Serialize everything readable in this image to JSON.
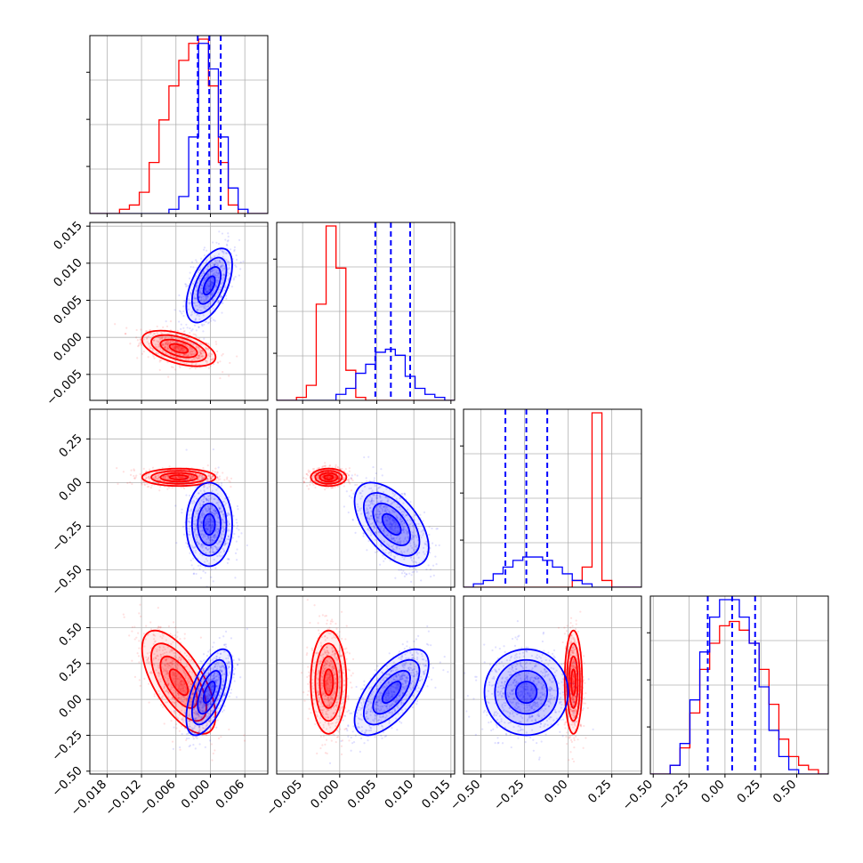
{
  "figure": {
    "type": "corner-plot",
    "colors": {
      "red": "#ff0000",
      "blue": "#0000ff",
      "grid": "#b0b0b0",
      "axis": "#000000"
    },
    "grid": true,
    "n_params": 4
  },
  "chart_data": {
    "type": "scatter",
    "title": "",
    "params": [
      {
        "range": [
          -0.021,
          0.01
        ],
        "ticks": [
          -0.018,
          -0.012,
          -0.006,
          0.0,
          0.006
        ],
        "tick_labels": [
          "−0.018",
          "−0.012",
          "−0.006",
          "0.000",
          "0.006"
        ]
      },
      {
        "range": [
          -0.0085,
          0.0155
        ],
        "ticks": [
          -0.005,
          0.0,
          0.005,
          0.01,
          0.015
        ],
        "tick_labels": [
          "−0.005",
          "0.000",
          "0.005",
          "0.010",
          "0.015"
        ]
      },
      {
        "range": [
          -0.6,
          0.42
        ],
        "ticks": [
          -0.5,
          -0.25,
          0.0,
          0.25
        ],
        "tick_labels": [
          "−0.50",
          "−0.25",
          "0.00",
          "0.25"
        ]
      },
      {
        "range": [
          -0.52,
          0.72
        ],
        "ticks": [
          -0.5,
          -0.25,
          0.0,
          0.25,
          0.5
        ],
        "tick_labels": [
          "−0.50",
          "−0.25",
          "0.00",
          "0.25",
          "0.50"
        ]
      }
    ],
    "series": [
      {
        "color": "#ff0000",
        "mean": [
          -0.0055,
          -0.0015,
          0.03,
          0.12
        ],
        "sd": [
          0.0032,
          0.0012,
          0.025,
          0.18
        ],
        "corr": [
          [
            0,
            1,
            -0.5
          ],
          [
            0,
            3,
            -0.65
          ]
        ]
      },
      {
        "color": "#0000ff",
        "mean": [
          -0.0002,
          0.007,
          -0.24,
          0.05
        ],
        "sd": [
          0.002,
          0.0025,
          0.12,
          0.15
        ],
        "corr": [
          [
            0,
            1,
            0.55
          ],
          [
            1,
            2,
            -0.55
          ],
          [
            1,
            3,
            0.65
          ],
          [
            0,
            3,
            0.6
          ]
        ]
      }
    ],
    "quantiles": [
      [
        -0.0022,
        -0.0002,
        0.0018
      ],
      [
        0.0048,
        0.0069,
        0.0095
      ],
      [
        -0.36,
        -0.24,
        -0.12
      ],
      [
        -0.12,
        0.05,
        0.21
      ]
    ],
    "histograms": [
      {
        "red": [
          0,
          0,
          0,
          1,
          2,
          5,
          12,
          22,
          30,
          36,
          40,
          41,
          30,
          12,
          2,
          0,
          0,
          0
        ],
        "blue": [
          0,
          0,
          0,
          0,
          0,
          0,
          0,
          0,
          1,
          4,
          18,
          40,
          34,
          18,
          6,
          1,
          0,
          0
        ]
      },
      {
        "red": [
          0,
          0,
          1,
          5,
          32,
          58,
          44,
          10,
          1,
          0,
          0,
          0,
          0,
          0,
          0,
          0,
          0,
          0
        ],
        "blue": [
          0,
          0,
          0,
          0,
          0,
          0,
          2,
          4,
          9,
          12,
          16,
          17,
          15,
          8,
          4,
          2,
          1,
          0
        ],
        "peaks_approx": true
      },
      {
        "red": [
          0,
          0,
          0,
          0,
          0,
          0,
          0,
          0,
          0,
          0,
          0,
          2,
          6,
          52,
          2,
          0,
          0,
          0
        ],
        "blue": [
          0,
          1,
          2,
          4,
          6,
          8,
          9,
          9,
          8,
          6,
          4,
          2,
          1,
          0,
          0,
          0,
          0,
          0
        ]
      },
      {
        "red": [
          0,
          0,
          2,
          6,
          14,
          24,
          30,
          34,
          35,
          33,
          30,
          24,
          16,
          8,
          4,
          2,
          1,
          0
        ],
        "blue": [
          0,
          0,
          2,
          7,
          17,
          28,
          36,
          40,
          40,
          36,
          30,
          20,
          10,
          4,
          1,
          0,
          0,
          0
        ]
      }
    ]
  }
}
